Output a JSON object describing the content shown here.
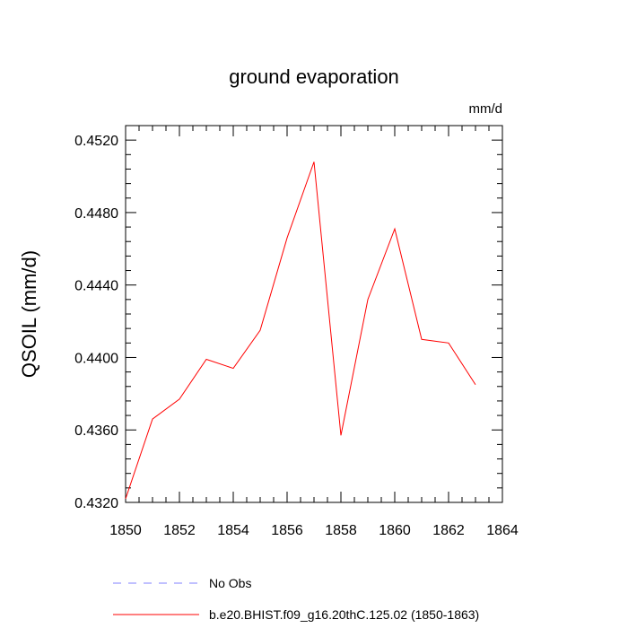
{
  "chart_data": {
    "type": "line",
    "title": "ground evaporation",
    "units": "mm/d",
    "xlabel": "",
    "ylabel": "QSOIL  (mm/d)",
    "xlim": [
      1850,
      1864
    ],
    "ylim": [
      0.432,
      0.4528
    ],
    "x_ticks": [
      1850,
      1852,
      1854,
      1856,
      1858,
      1860,
      1862,
      1864
    ],
    "x_tick_labels": [
      "1850",
      "1852",
      "1854",
      "1856",
      "1858",
      "1860",
      "1862",
      "1864"
    ],
    "y_ticks": [
      0.432,
      0.436,
      0.44,
      0.444,
      0.448,
      0.452
    ],
    "y_tick_labels": [
      "0.4320",
      "0.4360",
      "0.4400",
      "0.4440",
      "0.4480",
      "0.4520"
    ],
    "grid": false,
    "legend_position": "bottom",
    "series": [
      {
        "name": "No Obs",
        "color": "#8080ff",
        "style": "dashed",
        "x": [],
        "values": []
      },
      {
        "name": "b.e20.BHIST.f09_g16.20thC.125.02 (1850-1863)",
        "color": "#ff0000",
        "style": "solid",
        "x": [
          1850,
          1851,
          1852,
          1853,
          1854,
          1855,
          1856,
          1857,
          1858,
          1859,
          1860,
          1861,
          1862,
          1863
        ],
        "values": [
          0.4322,
          0.4366,
          0.4377,
          0.4399,
          0.4394,
          0.4415,
          0.4466,
          0.4508,
          0.4357,
          0.4432,
          0.4471,
          0.441,
          0.4408,
          0.4385
        ]
      }
    ]
  }
}
